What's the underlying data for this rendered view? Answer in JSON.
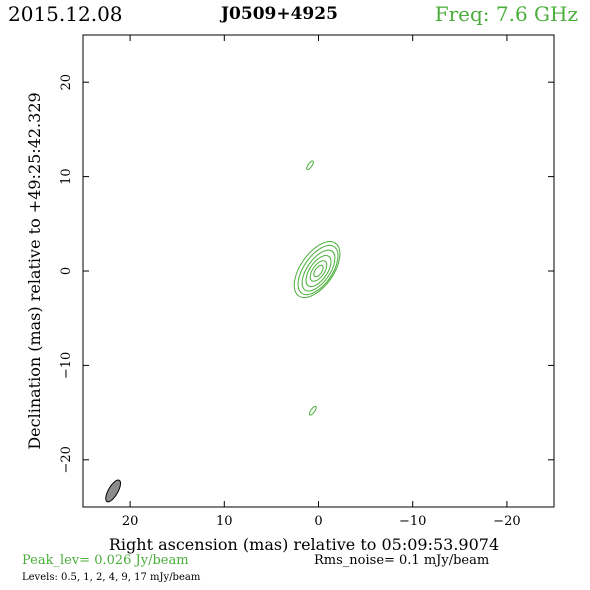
{
  "header": {
    "date": "2015.12.08",
    "source": "J0509+4925",
    "frequency": "Freq: 7.6 GHz"
  },
  "footer": {
    "peak": "Peak_lev=  0.026 Jy/beam",
    "rms": "Rms_noise=  0.1 mJy/beam",
    "levels": "Levels: 0.5,    1,    2,    4,    9,   17 mJy/beam"
  },
  "colors": {
    "contour": "#4aae3a",
    "beam_fill": "#8c8c8c",
    "axes": "#000000"
  },
  "chart_data": {
    "type": "contour",
    "xlabel": "Right ascension (mas) relative to 05:09:53.9074",
    "ylabel": "Declination (mas) relative to +49:25:42.329",
    "xlim": [
      25,
      -25
    ],
    "ylim": [
      -25,
      25
    ],
    "x_ticks": [
      20,
      10,
      0,
      -10,
      -20
    ],
    "y_ticks": [
      20,
      10,
      0,
      -10,
      -20
    ],
    "x_tick_labels": [
      "20",
      "10",
      "0",
      "−10",
      "−20"
    ],
    "y_tick_labels": [
      "20",
      "10",
      "0",
      "−10",
      "−20"
    ],
    "levels_mJy_per_beam": [
      0.5,
      1,
      2,
      4,
      9,
      17
    ],
    "core": {
      "ra": 0.0,
      "dec": 0.0
    },
    "jet_position_angle_deg": 35,
    "contours": [
      {
        "level": 0.5,
        "ra": 0.15,
        "dec": 0.15,
        "semi_major": 3.4,
        "semi_minor": 1.75
      },
      {
        "level": 1,
        "ra": 0.05,
        "dec": 0.1,
        "semi_major": 3.0,
        "semi_minor": 1.5
      },
      {
        "level": 2,
        "ra": 0.0,
        "dec": 0.05,
        "semi_major": 2.5,
        "semi_minor": 1.2
      },
      {
        "level": 4,
        "ra": 0.0,
        "dec": 0.0,
        "semi_major": 1.9,
        "semi_minor": 0.92
      },
      {
        "level": 9,
        "ra": 0.0,
        "dec": 0.0,
        "semi_major": 1.25,
        "semi_minor": 0.62
      },
      {
        "level": 17,
        "ra": 0.0,
        "dec": 0.0,
        "semi_major": 0.7,
        "semi_minor": 0.35
      }
    ],
    "isolated_components": [
      {
        "level": 0.5,
        "ra": 0.9,
        "dec": 11.2,
        "semi_major": 0.55,
        "semi_minor": 0.2
      },
      {
        "level": 0.5,
        "ra": 0.6,
        "dec": -14.8,
        "semi_major": 0.55,
        "semi_minor": 0.2
      }
    ],
    "beam": {
      "ra": 21.8,
      "dec": -23.3,
      "major_mas": 2.6,
      "minor_mas": 1.0,
      "position_angle_deg": 30
    }
  }
}
